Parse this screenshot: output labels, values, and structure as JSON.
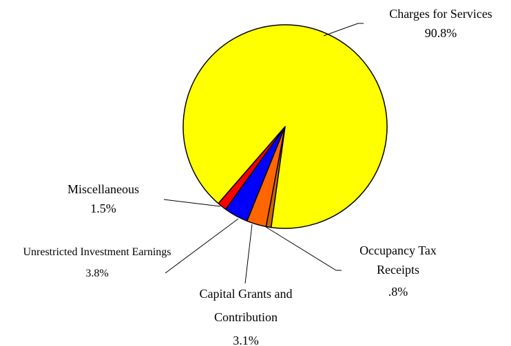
{
  "chart_data": {
    "type": "pie",
    "categories": [
      "Charges for Services",
      "Occupancy Tax Receipts",
      "Capital Grants and Contribution",
      "Unrestricted Investment Earnings",
      "Miscellaneous"
    ],
    "values": [
      90.8,
      0.8,
      3.1,
      3.8,
      1.5
    ],
    "value_labels": [
      "90.8%",
      ".8%",
      "3.1%",
      "3.8%",
      "1.5%"
    ],
    "colors": [
      "#ffff00",
      "#cc6600",
      "#ff6600",
      "#0000ff",
      "#ff0000"
    ]
  }
}
